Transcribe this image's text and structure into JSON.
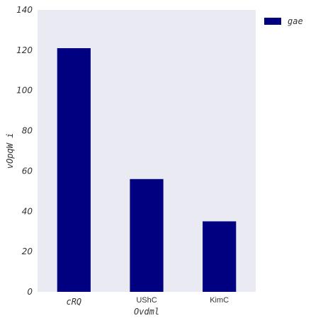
{
  "chart_data": {
    "type": "bar",
    "categories": [
      "cRQ",
      "UShC",
      "KimC"
    ],
    "series": [
      {
        "name": "gae",
        "values": [
          121,
          56,
          35
        ],
        "color": "#000080"
      }
    ],
    "xlabel": "Ovdml",
    "ylabel": "vOpqW i",
    "ylim": [
      0,
      140
    ],
    "yticks": [
      0,
      20,
      40,
      60,
      80,
      100,
      120,
      140
    ],
    "grid": false,
    "background": "#e9eaf2",
    "legend_position": "top-right-outside"
  }
}
